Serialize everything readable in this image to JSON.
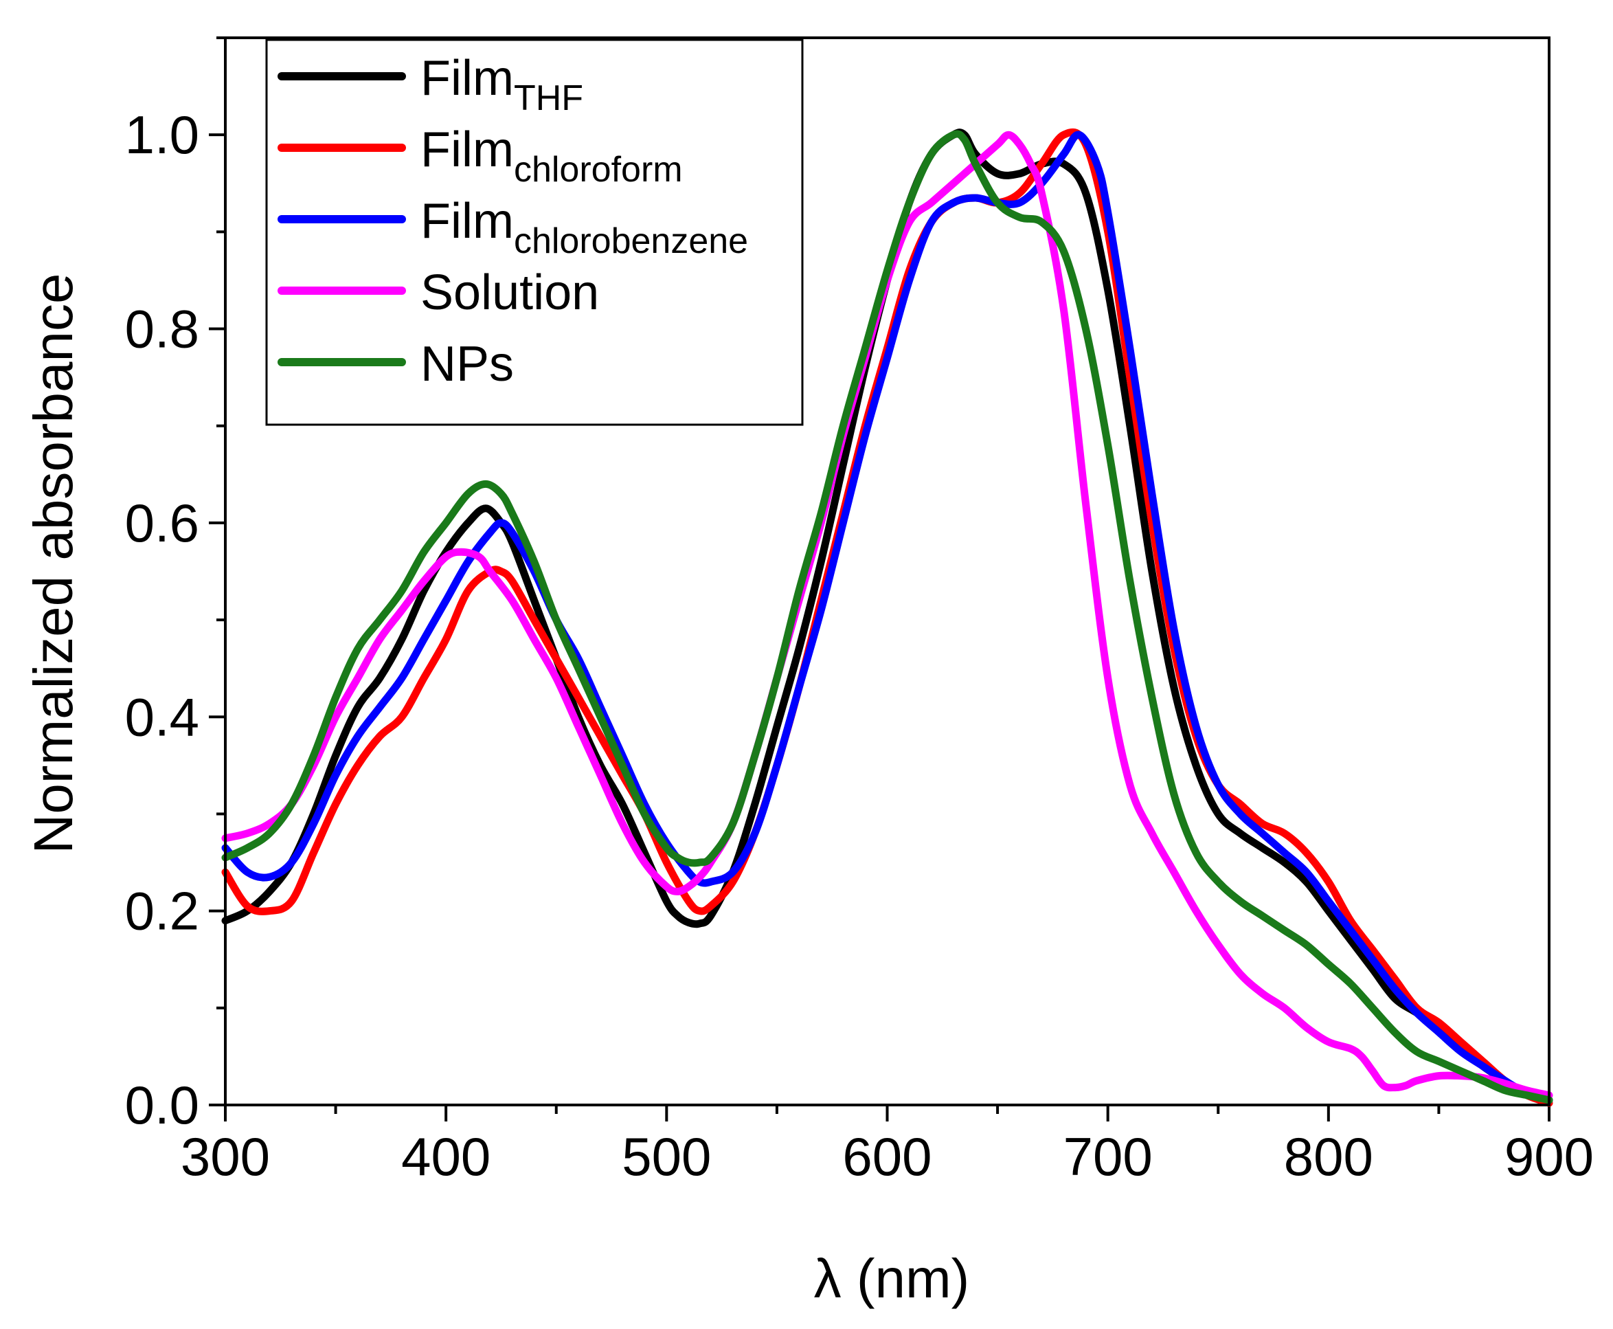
{
  "chart_data": {
    "type": "line",
    "title": "",
    "xlabel": "λ (nm)",
    "ylabel": "Normalized absorbance",
    "xlim": [
      300,
      900
    ],
    "ylim": [
      0,
      1.1
    ],
    "x_ticks": [
      300,
      400,
      500,
      600,
      700,
      800,
      900
    ],
    "x_tick_labels": [
      "300",
      "400",
      "500",
      "600",
      "700",
      "800",
      "900"
    ],
    "y_ticks": [
      0.0,
      0.2,
      0.4,
      0.6,
      0.8,
      1.0
    ],
    "y_tick_labels": [
      "0.0",
      "0.2",
      "0.4",
      "0.6",
      "0.8",
      "1.0"
    ],
    "grid": false,
    "legend_position": "top-left",
    "series": [
      {
        "name": "Film",
        "name_subscript": "THF",
        "color": "#000000",
        "x": [
          300,
          310,
          320,
          330,
          340,
          350,
          360,
          370,
          380,
          390,
          400,
          410,
          418,
          425,
          430,
          440,
          450,
          460,
          470,
          480,
          490,
          500,
          505,
          510,
          515,
          520,
          530,
          540,
          550,
          560,
          570,
          580,
          590,
          600,
          610,
          620,
          630,
          635,
          640,
          650,
          660,
          670,
          680,
          690,
          700,
          710,
          720,
          730,
          740,
          750,
          760,
          770,
          780,
          790,
          800,
          810,
          820,
          830,
          840,
          850,
          860,
          870,
          880,
          890,
          900
        ],
        "y": [
          0.19,
          0.2,
          0.22,
          0.25,
          0.3,
          0.36,
          0.41,
          0.44,
          0.48,
          0.53,
          0.57,
          0.6,
          0.615,
          0.6,
          0.58,
          0.52,
          0.46,
          0.4,
          0.35,
          0.31,
          0.26,
          0.21,
          0.195,
          0.188,
          0.187,
          0.195,
          0.24,
          0.31,
          0.39,
          0.47,
          0.56,
          0.66,
          0.76,
          0.85,
          0.93,
          0.98,
          1.0,
          1.0,
          0.98,
          0.96,
          0.96,
          0.97,
          0.97,
          0.94,
          0.84,
          0.7,
          0.55,
          0.43,
          0.35,
          0.3,
          0.28,
          0.265,
          0.25,
          0.23,
          0.2,
          0.17,
          0.14,
          0.11,
          0.095,
          0.08,
          0.06,
          0.04,
          0.025,
          0.01,
          0.005
        ]
      },
      {
        "name": "Film",
        "name_subscript": "chloroform",
        "color": "#ff0000",
        "x": [
          300,
          310,
          320,
          330,
          340,
          350,
          360,
          370,
          380,
          390,
          400,
          410,
          420,
          425,
          430,
          440,
          450,
          460,
          470,
          480,
          490,
          500,
          510,
          515,
          520,
          530,
          540,
          550,
          560,
          570,
          580,
          590,
          600,
          610,
          620,
          630,
          640,
          650,
          660,
          670,
          680,
          690,
          700,
          710,
          720,
          730,
          740,
          750,
          760,
          770,
          780,
          790,
          800,
          810,
          820,
          830,
          840,
          850,
          860,
          870,
          880,
          890,
          900
        ],
        "y": [
          0.24,
          0.205,
          0.2,
          0.21,
          0.26,
          0.31,
          0.35,
          0.38,
          0.4,
          0.44,
          0.48,
          0.53,
          0.55,
          0.55,
          0.54,
          0.5,
          0.46,
          0.42,
          0.38,
          0.34,
          0.3,
          0.25,
          0.21,
          0.2,
          0.205,
          0.23,
          0.28,
          0.35,
          0.43,
          0.52,
          0.61,
          0.7,
          0.78,
          0.86,
          0.91,
          0.93,
          0.935,
          0.93,
          0.94,
          0.97,
          1.0,
          0.99,
          0.9,
          0.75,
          0.6,
          0.47,
          0.38,
          0.33,
          0.31,
          0.29,
          0.28,
          0.26,
          0.23,
          0.19,
          0.16,
          0.13,
          0.1,
          0.085,
          0.065,
          0.045,
          0.025,
          0.01,
          0.002
        ]
      },
      {
        "name": "Film",
        "name_subscript": "chlorobenzene",
        "color": "#0000ff",
        "x": [
          300,
          310,
          320,
          330,
          340,
          350,
          360,
          370,
          380,
          390,
          400,
          410,
          420,
          425,
          430,
          440,
          450,
          460,
          470,
          480,
          490,
          500,
          510,
          515,
          520,
          530,
          540,
          550,
          560,
          570,
          580,
          590,
          600,
          610,
          620,
          630,
          640,
          650,
          660,
          670,
          680,
          687,
          695,
          700,
          710,
          720,
          730,
          740,
          750,
          760,
          770,
          780,
          790,
          800,
          810,
          820,
          830,
          840,
          850,
          860,
          870,
          880,
          890,
          900
        ],
        "y": [
          0.265,
          0.24,
          0.235,
          0.25,
          0.29,
          0.34,
          0.38,
          0.41,
          0.44,
          0.48,
          0.52,
          0.56,
          0.59,
          0.6,
          0.59,
          0.55,
          0.5,
          0.46,
          0.41,
          0.36,
          0.31,
          0.27,
          0.24,
          0.23,
          0.23,
          0.24,
          0.28,
          0.35,
          0.43,
          0.51,
          0.6,
          0.69,
          0.77,
          0.85,
          0.91,
          0.93,
          0.935,
          0.93,
          0.93,
          0.95,
          0.98,
          1.0,
          0.97,
          0.92,
          0.78,
          0.63,
          0.49,
          0.39,
          0.33,
          0.3,
          0.28,
          0.26,
          0.24,
          0.21,
          0.18,
          0.15,
          0.12,
          0.095,
          0.075,
          0.055,
          0.04,
          0.025,
          0.012,
          0.005
        ]
      },
      {
        "name": "Solution",
        "color": "#ff00ff",
        "x": [
          300,
          310,
          320,
          330,
          340,
          350,
          360,
          370,
          380,
          390,
          400,
          407,
          415,
          420,
          430,
          440,
          450,
          460,
          470,
          480,
          490,
          500,
          505,
          510,
          515,
          520,
          530,
          540,
          550,
          560,
          570,
          580,
          590,
          600,
          610,
          620,
          630,
          640,
          650,
          655,
          660,
          665,
          670,
          680,
          690,
          700,
          710,
          720,
          730,
          740,
          750,
          760,
          770,
          780,
          790,
          800,
          810,
          815,
          820,
          825,
          830,
          835,
          840,
          850,
          860,
          870,
          880,
          890,
          900
        ],
        "y": [
          0.275,
          0.28,
          0.29,
          0.31,
          0.35,
          0.4,
          0.44,
          0.48,
          0.51,
          0.54,
          0.565,
          0.57,
          0.565,
          0.55,
          0.52,
          0.48,
          0.44,
          0.39,
          0.34,
          0.29,
          0.25,
          0.225,
          0.22,
          0.225,
          0.235,
          0.25,
          0.29,
          0.36,
          0.44,
          0.52,
          0.6,
          0.69,
          0.77,
          0.85,
          0.91,
          0.93,
          0.95,
          0.97,
          0.99,
          1.0,
          0.99,
          0.97,
          0.94,
          0.82,
          0.62,
          0.44,
          0.33,
          0.28,
          0.24,
          0.2,
          0.165,
          0.135,
          0.115,
          0.1,
          0.08,
          0.065,
          0.058,
          0.05,
          0.035,
          0.02,
          0.018,
          0.02,
          0.025,
          0.03,
          0.03,
          0.028,
          0.022,
          0.015,
          0.01
        ]
      },
      {
        "name": "NPs",
        "color": "#1a7a1a",
        "x": [
          300,
          310,
          320,
          330,
          340,
          350,
          360,
          370,
          380,
          390,
          400,
          410,
          418,
          425,
          430,
          440,
          450,
          460,
          470,
          480,
          490,
          500,
          505,
          510,
          515,
          520,
          530,
          540,
          550,
          560,
          570,
          580,
          590,
          600,
          610,
          620,
          630,
          635,
          640,
          650,
          660,
          670,
          680,
          690,
          700,
          710,
          720,
          730,
          740,
          750,
          760,
          770,
          780,
          790,
          800,
          810,
          820,
          830,
          840,
          850,
          860,
          870,
          880,
          890,
          900
        ],
        "y": [
          0.255,
          0.265,
          0.28,
          0.31,
          0.36,
          0.42,
          0.47,
          0.5,
          0.53,
          0.57,
          0.6,
          0.63,
          0.64,
          0.63,
          0.61,
          0.56,
          0.5,
          0.45,
          0.4,
          0.35,
          0.3,
          0.265,
          0.255,
          0.25,
          0.25,
          0.255,
          0.29,
          0.36,
          0.44,
          0.53,
          0.61,
          0.7,
          0.78,
          0.86,
          0.93,
          0.98,
          1.0,
          0.995,
          0.97,
          0.93,
          0.915,
          0.91,
          0.88,
          0.8,
          0.68,
          0.54,
          0.42,
          0.32,
          0.26,
          0.23,
          0.21,
          0.195,
          0.18,
          0.165,
          0.145,
          0.125,
          0.1,
          0.075,
          0.055,
          0.045,
          0.035,
          0.025,
          0.015,
          0.01,
          0.005
        ]
      }
    ]
  }
}
